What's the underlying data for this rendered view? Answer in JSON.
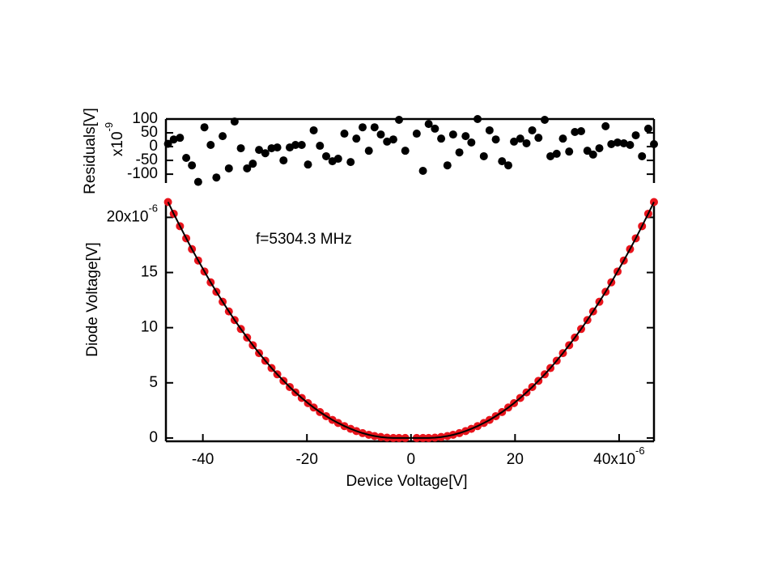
{
  "chart_data": [
    {
      "type": "scatter",
      "ylabel": "Residuals[V]",
      "y_multiplier": "x10",
      "y_exponent": "-9",
      "color": "#000000",
      "x": [
        -46.7,
        -45.6,
        -44.4,
        -43.2,
        -42.1,
        -40.9,
        -39.7,
        -38.5,
        -37.4,
        -36.2,
        -35.0,
        -33.9,
        -32.7,
        -31.5,
        -30.4,
        -29.2,
        -28.0,
        -26.8,
        -25.7,
        -24.5,
        -23.3,
        -22.2,
        -21.0,
        -19.8,
        -18.7,
        -17.5,
        -16.3,
        -15.1,
        -14.0,
        -12.8,
        -11.6,
        -10.5,
        -9.3,
        -8.1,
        -7.0,
        -5.8,
        -4.6,
        -3.4,
        -2.3,
        -1.1,
        1.1,
        2.3,
        3.4,
        4.6,
        5.8,
        7.0,
        8.1,
        9.3,
        10.5,
        11.6,
        12.8,
        14.0,
        15.1,
        16.3,
        17.5,
        18.7,
        19.8,
        21.0,
        22.2,
        23.3,
        24.5,
        25.7,
        26.8,
        28.0,
        29.2,
        30.4,
        31.5,
        32.7,
        33.9,
        35.0,
        36.2,
        37.4,
        38.5,
        39.7,
        40.9,
        42.1,
        43.2,
        44.4,
        45.6,
        46.7
      ],
      "values": [
        10,
        26,
        32,
        -41,
        -68,
        -128,
        70,
        6,
        -112,
        38,
        -79,
        91,
        -6,
        -79,
        -62,
        -12,
        -24,
        -6,
        -3,
        -50,
        -3,
        6,
        6,
        -65,
        59,
        3,
        -35,
        -53,
        -44,
        47,
        -56,
        29,
        70,
        -15,
        70,
        44,
        18,
        26,
        97,
        -15,
        47,
        -88,
        82,
        65,
        29,
        -68,
        44,
        -21,
        38,
        15,
        100,
        -35,
        59,
        26,
        -53,
        -68,
        18,
        29,
        12,
        59,
        32,
        97,
        -35,
        -26,
        29,
        -18,
        53,
        56,
        -15,
        -29,
        -6,
        74,
        9,
        15,
        12,
        6,
        41,
        -35,
        65,
        9
      ],
      "xlim": [
        -47.1,
        46.7
      ],
      "ylim": [
        -132,
        100
      ],
      "yticks": [
        -100,
        -50,
        0,
        50,
        100
      ]
    },
    {
      "type": "scatter",
      "xlabel": "Device Voltage[V]",
      "ylabel": "Diode Voltage[V]",
      "annotation": "f=5304.3 MHz",
      "x_exponent": "-6",
      "y_exponent": "-6",
      "color": "#e8141c",
      "line_color": "#000000",
      "x": [
        -46.7,
        -45.6,
        -44.4,
        -43.2,
        -42.1,
        -40.9,
        -39.7,
        -38.5,
        -37.4,
        -36.2,
        -35.0,
        -33.9,
        -32.7,
        -31.5,
        -30.4,
        -29.2,
        -28.0,
        -26.8,
        -25.7,
        -24.5,
        -23.3,
        -22.2,
        -21.0,
        -19.8,
        -18.7,
        -17.5,
        -16.3,
        -15.1,
        -14.0,
        -12.8,
        -11.6,
        -10.5,
        -9.3,
        -8.1,
        -7.0,
        -5.8,
        -4.6,
        -3.4,
        -2.3,
        -1.1,
        1.1,
        2.3,
        3.4,
        4.6,
        5.8,
        7.0,
        8.1,
        9.3,
        10.5,
        11.6,
        12.8,
        14.0,
        15.1,
        16.3,
        17.5,
        18.7,
        19.8,
        21.0,
        22.2,
        23.3,
        24.5,
        25.7,
        26.8,
        28.0,
        29.2,
        30.4,
        31.5,
        32.7,
        33.9,
        35.0,
        36.2,
        37.4,
        38.5,
        39.7,
        40.9,
        42.1,
        43.2,
        44.4,
        45.6,
        46.7
      ],
      "values": [
        21.39,
        20.33,
        19.2,
        18.1,
        17.12,
        16.09,
        15.09,
        14.11,
        13.25,
        12.35,
        11.47,
        10.69,
        9.88,
        9.1,
        8.41,
        7.69,
        7.0,
        6.34,
        5.77,
        5.18,
        4.62,
        4.13,
        3.63,
        3.16,
        2.76,
        2.35,
        1.98,
        1.64,
        1.36,
        1.08,
        0.83,
        0.63,
        0.44,
        0.29,
        0.18,
        0.09,
        0.03,
        0,
        0,
        0,
        0,
        0,
        0,
        0.03,
        0.09,
        0.18,
        0.29,
        0.44,
        0.63,
        0.83,
        1.08,
        1.36,
        1.64,
        1.98,
        2.35,
        2.76,
        3.16,
        3.63,
        4.13,
        4.62,
        5.18,
        5.77,
        6.34,
        7.0,
        7.69,
        8.41,
        9.1,
        9.88,
        10.69,
        11.47,
        12.35,
        13.25,
        14.11,
        15.09,
        16.09,
        17.12,
        18.1,
        19.2,
        20.33,
        21.39
      ],
      "xlim": [
        -47.1,
        46.7
      ],
      "ylim": [
        -0.3,
        21.5
      ],
      "xticks": [
        -40,
        -20,
        0,
        20,
        {
          "value": 40,
          "label": "40x10"
        }
      ],
      "yticks": [
        0,
        5,
        10,
        15,
        {
          "value": 20,
          "label": "20x10"
        }
      ]
    }
  ]
}
